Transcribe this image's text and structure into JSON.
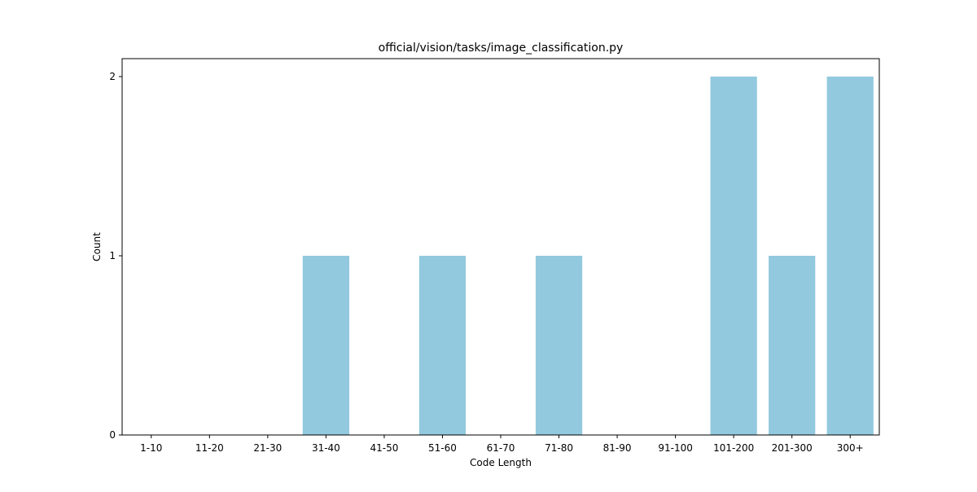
{
  "chart_data": {
    "type": "bar",
    "title": "official/vision/tasks/image_classification.py",
    "xlabel": "Code Length",
    "ylabel": "Count",
    "categories": [
      "1-10",
      "11-20",
      "21-30",
      "31-40",
      "41-50",
      "51-60",
      "61-70",
      "71-80",
      "81-90",
      "91-100",
      "101-200",
      "201-300",
      "300+"
    ],
    "values": [
      0,
      0,
      0,
      1,
      0,
      1,
      0,
      1,
      0,
      0,
      2,
      1,
      2
    ],
    "ylim": [
      0,
      2.1
    ],
    "yticks": [
      "0",
      "1",
      "2"
    ],
    "bar_color": "#92c9de",
    "grid": false,
    "legend": "none"
  }
}
